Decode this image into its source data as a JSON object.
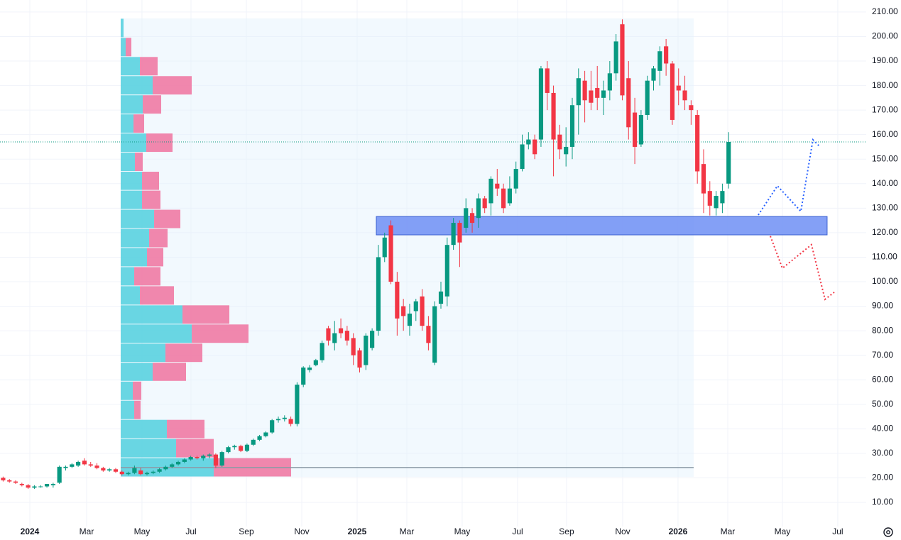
{
  "chart_data": {
    "type": "candlestick",
    "up_color": "#089981",
    "down_color": "#f23645",
    "xlim": [
      0,
      138.5
    ],
    "ylim": [
      0,
      214.9
    ],
    "xticks": [
      {
        "value": 4.77,
        "label": "2024"
      },
      {
        "value": 13.85,
        "label": "Mar"
      },
      {
        "value": 22.7,
        "label": "May"
      },
      {
        "value": 30.54,
        "label": "Jul"
      },
      {
        "value": 39.39,
        "label": "Sep"
      },
      {
        "value": 48.25,
        "label": "Nov"
      },
      {
        "value": 57.1,
        "label": "2025"
      },
      {
        "value": 65.05,
        "label": "Mar"
      },
      {
        "value": 73.9,
        "label": "May"
      },
      {
        "value": 82.76,
        "label": "Jul"
      },
      {
        "value": 90.59,
        "label": "Sep"
      },
      {
        "value": 99.56,
        "label": "Nov"
      },
      {
        "value": 108.41,
        "label": "2026"
      },
      {
        "value": 116.36,
        "label": "Mar"
      },
      {
        "value": 125.1,
        "label": "May"
      },
      {
        "value": 133.95,
        "label": "Jul"
      }
    ],
    "yticks": [
      {
        "value": 10,
        "label": "10.00"
      },
      {
        "value": 20,
        "label": "20.00"
      },
      {
        "value": 30,
        "label": "30.00"
      },
      {
        "value": 40,
        "label": "40.00"
      },
      {
        "value": 50,
        "label": "50.00"
      },
      {
        "value": 60,
        "label": "60.00"
      },
      {
        "value": 70,
        "label": "70.00"
      },
      {
        "value": 80,
        "label": "80.00"
      },
      {
        "value": 90,
        "label": "90.00"
      },
      {
        "value": 100,
        "label": "100.00"
      },
      {
        "value": 110,
        "label": "110.00"
      },
      {
        "value": 120,
        "label": "120.00"
      },
      {
        "value": 130,
        "label": "130.00"
      },
      {
        "value": 140,
        "label": "140.00"
      },
      {
        "value": 150,
        "label": "150.00"
      },
      {
        "value": 160,
        "label": "160.00"
      },
      {
        "value": 170,
        "label": "170.00"
      },
      {
        "value": 180,
        "label": "180.00"
      },
      {
        "value": 190,
        "label": "190.00"
      },
      {
        "value": 200,
        "label": "200.00"
      },
      {
        "value": 210,
        "label": "210.00"
      }
    ],
    "grid": true,
    "x": [
      0.5,
      1.5,
      2.5,
      3.5,
      4.5,
      5.5,
      6.5,
      7.5,
      8.5,
      9.5,
      10.5,
      11.5,
      12.5,
      13.5,
      14.5,
      15.5,
      16.5,
      17.5,
      18.5,
      19.5,
      20.5,
      21.5,
      22.5,
      23.5,
      24.5,
      25.5,
      26.5,
      27.5,
      28.5,
      29.5,
      30.5,
      31.5,
      32.5,
      33.5,
      34.5,
      35.5,
      36.5,
      37.5,
      38.5,
      39.5,
      40.5,
      41.5,
      42.5,
      43.5,
      44.5,
      45.5,
      46.5,
      47.5,
      48.5,
      49.5,
      50.5,
      51.5,
      52.5,
      53.5,
      54.5,
      55.5,
      56.5,
      57.5,
      58.5,
      59.5,
      60.5,
      61.5,
      62.5,
      63.5,
      64.5,
      65.5,
      66.5,
      67.5,
      68.5,
      69.5,
      70.5,
      71.5,
      72.5,
      73.5,
      74.5,
      75.5,
      76.5,
      77.5,
      78.5,
      79.5,
      80.5,
      81.5,
      82.5,
      83.5,
      84.5,
      85.5,
      86.5,
      87.5,
      88.5,
      89.5,
      90.5,
      91.5,
      92.5,
      93.5,
      94.5,
      95.5,
      96.5,
      97.5,
      98.5,
      99.5,
      100.5,
      101.5,
      102.5,
      103.5,
      104.5,
      105.5,
      106.5,
      107.5,
      108.5,
      109.5,
      110.5,
      111.5,
      112.5,
      113.5,
      114.5,
      115.5,
      116.5
    ],
    "open": [
      20,
      19,
      18.5,
      17.5,
      17,
      16,
      16.5,
      16.5,
      17,
      18,
      24,
      24.5,
      25,
      27,
      25.5,
      25,
      24,
      23,
      23.5,
      22.5,
      21.5,
      22,
      23,
      21.5,
      22,
      22.5,
      23.5,
      24.5,
      25.5,
      26.5,
      27.5,
      28.5,
      28,
      29,
      29.5,
      25,
      30.5,
      32.5,
      33,
      31,
      33.5,
      35.5,
      37,
      38.5,
      43.5,
      44,
      44,
      42,
      58,
      64,
      66,
      68,
      81,
      75,
      81,
      80,
      77,
      72,
      66,
      73,
      80,
      110,
      123,
      100,
      90,
      82,
      88,
      94,
      82,
      67,
      91,
      94,
      115,
      124,
      122,
      128,
      126,
      134,
      132,
      140,
      138,
      132,
      138,
      146,
      156,
      158,
      158,
      187,
      177,
      160,
      152,
      155,
      172,
      182,
      178,
      179,
      175,
      178,
      185,
      205,
      183,
      169,
      156,
      168,
      182,
      186,
      196,
      189,
      180,
      178,
      172,
      168,
      148,
      137,
      130,
      132,
      140
    ],
    "high": [
      20.5,
      19.5,
      19,
      18,
      17.5,
      17,
      17,
      17.5,
      18,
      25,
      25,
      26,
      27,
      28,
      26.5,
      26,
      24.5,
      24,
      24,
      23,
      22.5,
      25,
      24,
      22.5,
      23,
      24,
      25,
      26,
      27,
      28,
      29,
      29,
      29.5,
      30,
      30,
      31,
      33,
      33.5,
      33.5,
      34,
      36,
      37.5,
      39,
      44,
      45,
      45.5,
      45,
      59,
      65.5,
      66,
      68.5,
      76,
      82,
      84,
      85,
      82,
      79,
      73,
      79,
      81,
      115,
      120,
      125,
      104,
      93,
      91,
      93,
      97,
      86,
      92,
      100,
      118,
      126,
      125,
      134,
      130,
      136,
      135,
      143,
      146,
      140,
      143,
      149,
      160,
      161,
      160,
      188,
      190,
      180,
      164,
      163,
      175,
      187,
      186,
      186,
      188,
      182,
      190,
      201,
      207,
      190,
      175,
      170,
      184,
      188,
      196,
      199,
      190,
      187,
      184,
      174,
      170,
      154,
      141,
      137,
      140,
      161
    ],
    "low": [
      18.5,
      18,
      17.5,
      16.5,
      15.5,
      15.5,
      16,
      16,
      16,
      17.5,
      23,
      24,
      24.5,
      25,
      24.5,
      23.5,
      22.5,
      22.5,
      22,
      21,
      21,
      21.5,
      21,
      21,
      21.5,
      22,
      23,
      24,
      25,
      26,
      27,
      27.5,
      27,
      28,
      24,
      24.5,
      30,
      31.5,
      30.5,
      30.5,
      33,
      35,
      36.5,
      38,
      42.5,
      43,
      41,
      41,
      57,
      63,
      65.5,
      67,
      74,
      72,
      77,
      74,
      66,
      63,
      64,
      72,
      78,
      108,
      99,
      78,
      80,
      78,
      84,
      80,
      72,
      66,
      89,
      90,
      113,
      106,
      120,
      120,
      122,
      128,
      127,
      135,
      128,
      131,
      136,
      145,
      154,
      150,
      155,
      170,
      143,
      150,
      147,
      150,
      160,
      165,
      170,
      170,
      168,
      174,
      182,
      174,
      158,
      148,
      155,
      166,
      178,
      180,
      184,
      164,
      172,
      170,
      164,
      140,
      128,
      127,
      127,
      128,
      138
    ],
    "close": [
      19,
      18.5,
      18,
      17,
      16,
      16.5,
      16.5,
      17.5,
      17.5,
      24.5,
      24.5,
      25.5,
      26.5,
      25.5,
      25,
      24,
      23,
      23.5,
      22.5,
      21.5,
      22,
      24,
      21.5,
      22,
      22.5,
      23.5,
      24.5,
      25.5,
      26.5,
      27.5,
      28.5,
      28,
      29,
      29.5,
      25,
      30.5,
      32.5,
      33,
      31,
      33.5,
      35.5,
      37,
      38.5,
      43.5,
      44,
      44.5,
      42,
      58,
      65,
      65,
      68,
      75,
      76,
      79,
      79,
      76,
      70,
      65,
      78,
      80,
      110,
      118,
      100,
      85,
      86,
      87,
      92,
      82,
      75,
      90,
      96,
      115,
      124,
      116,
      130,
      124,
      134,
      130,
      142,
      138,
      130,
      138,
      146,
      156,
      158,
      152,
      187,
      177,
      158,
      154,
      155,
      172,
      183,
      174,
      173,
      175,
      178,
      185,
      198,
      176,
      163,
      155,
      168,
      182,
      187,
      194,
      189,
      166,
      178,
      174,
      170,
      145,
      136,
      131,
      135,
      137,
      157
    ],
    "volume_profile": {
      "bins": [
        20.4,
        28.2,
        36.0,
        43.8,
        51.6,
        59.4,
        67.1,
        74.9,
        82.7,
        90.5,
        98.3,
        106.1,
        113.9,
        121.7,
        129.5,
        137.3,
        145.0,
        152.8,
        160.6,
        168.4,
        176.2,
        184.0,
        191.8,
        199.6,
        207.4
      ],
      "up": [
        131,
        78,
        65,
        19,
        17,
        45,
        63,
        100,
        87,
        27,
        19,
        37,
        40,
        47,
        30,
        30,
        20,
        36,
        18,
        31,
        45,
        27,
        7,
        4
      ],
      "down": [
        109,
        53,
        53,
        9,
        12,
        47,
        52,
        80,
        66,
        48,
        37,
        23,
        26,
        37,
        26,
        24,
        11,
        37,
        15,
        26,
        55,
        25,
        8,
        0
      ],
      "up_color": "#5ad2e0",
      "down_color": "#f07aa4",
      "x": [
        19.3,
        110.91
      ],
      "poc": 24.2
    },
    "zone": {
      "x": [
        60.17,
        132.25
      ],
      "y": [
        119.1,
        126.6
      ],
      "color": "#6f8ff5"
    },
    "price_line": {
      "value": 157,
      "color": "#089981"
    },
    "projections": [
      {
        "color": "#2962ff",
        "x": [
          121.24,
          124.3,
          128.05,
          129.98,
          131.12
        ],
        "y": [
          127.2,
          139.1,
          128.7,
          157.9,
          155.0
        ]
      },
      {
        "color": "#f23645",
        "x": [
          123.17,
          125.1,
          129.75,
          131.91,
          133.39
        ],
        "y": [
          118.6,
          105.5,
          115.1,
          92.8,
          95.7
        ]
      }
    ]
  }
}
